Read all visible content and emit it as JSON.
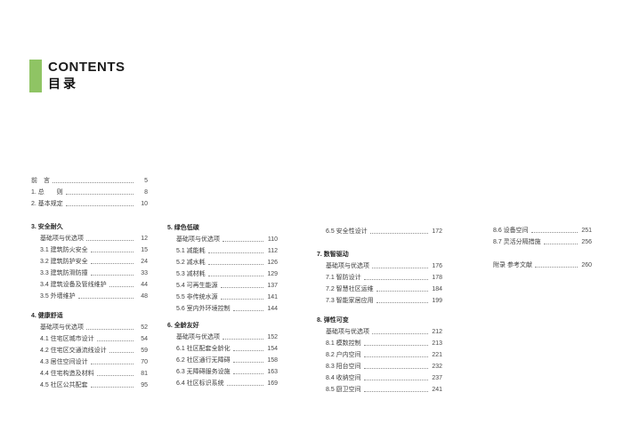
{
  "header": {
    "accent_color": "#8fc464",
    "title_en": "CONTENTS",
    "title_zh": "目录"
  },
  "toc": {
    "columns": [
      {
        "blocks": [
          {
            "items": [
              {
                "label": "前　言",
                "page": "5",
                "level": 0
              },
              {
                "label": "1. 总　　则",
                "page": "8",
                "level": 0
              },
              {
                "label": "2. 基本规定",
                "page": "10",
                "level": 0
              }
            ]
          },
          {
            "heading": "3. 安全耐久",
            "items": [
              {
                "label": "基础项与优选项",
                "page": "12",
                "level": 1
              },
              {
                "label": "3.1 建筑防火安全",
                "page": "15",
                "level": 1
              },
              {
                "label": "3.2 建筑防护安全",
                "page": "24",
                "level": 1
              },
              {
                "label": "3.3 建筑防滑防撞",
                "page": "33",
                "level": 1
              },
              {
                "label": "3.4 建筑设备及管线维护",
                "page": "44",
                "level": 1
              },
              {
                "label": "3.5 外墙维护",
                "page": "48",
                "level": 1
              }
            ]
          },
          {
            "heading": "4. 健康舒适",
            "items": [
              {
                "label": "基础项与优选项",
                "page": "52",
                "level": 1
              },
              {
                "label": "4.1 住宅区城市设计",
                "page": "54",
                "level": 1
              },
              {
                "label": "4.2 住宅区交通流线设计",
                "page": "59",
                "level": 1
              },
              {
                "label": "4.3 居住空间设计",
                "page": "70",
                "level": 1
              },
              {
                "label": "4.4 住宅构造及材料",
                "page": "81",
                "level": 1
              },
              {
                "label": "4.5 社区公共配套",
                "page": "95",
                "level": 1
              }
            ]
          }
        ]
      },
      {
        "blocks": [
          {
            "heading": "5. 绿色低碳",
            "items": [
              {
                "label": "基础项与优选项",
                "page": "110",
                "level": 1
              },
              {
                "label": "5.1 减能耗",
                "page": "112",
                "level": 1
              },
              {
                "label": "5.2 减水耗",
                "page": "126",
                "level": 1
              },
              {
                "label": "5.3 减材耗",
                "page": "129",
                "level": 1
              },
              {
                "label": "5.4 可再生能源",
                "page": "137",
                "level": 1
              },
              {
                "label": "5.5 非传统水源",
                "page": "141",
                "level": 1
              },
              {
                "label": "5.6 室内外环境控制",
                "page": "144",
                "level": 1
              }
            ]
          },
          {
            "heading": "6. 全龄友好",
            "items": [
              {
                "label": "基础项与优选项",
                "page": "152",
                "level": 1
              },
              {
                "label": "6.1 社区配套全龄化",
                "page": "154",
                "level": 1
              },
              {
                "label": "6.2 社区通行无障碍",
                "page": "158",
                "level": 1
              },
              {
                "label": "6.3 无障碍服务设施",
                "page": "163",
                "level": 1
              },
              {
                "label": "6.4 社区标识系统",
                "page": "169",
                "level": 1
              }
            ]
          }
        ]
      },
      {
        "blocks": [
          {
            "items": [
              {
                "label": "6.5 安全性设计",
                "page": "172",
                "level": 1
              }
            ]
          },
          {
            "heading": "7. 数智驱动",
            "items": [
              {
                "label": "基础项与优选项",
                "page": "176",
                "level": 1
              },
              {
                "label": "7.1 智防设计",
                "page": "178",
                "level": 1
              },
              {
                "label": "7.2 智慧社区运维",
                "page": "184",
                "level": 1
              },
              {
                "label": "7.3 智能家居应用",
                "page": "199",
                "level": 1
              }
            ]
          },
          {
            "heading": "8. 弹性可变",
            "items": [
              {
                "label": "基础项与优选项",
                "page": "212",
                "level": 1
              },
              {
                "label": "8.1 模数控制",
                "page": "213",
                "level": 1
              },
              {
                "label": "8.2 户内空间",
                "page": "221",
                "level": 1
              },
              {
                "label": "8.3 阳台空间",
                "page": "232",
                "level": 1
              },
              {
                "label": "8.4 收纳空间",
                "page": "237",
                "level": 1
              },
              {
                "label": "8.5 厨卫空间",
                "page": "241",
                "level": 1
              }
            ]
          }
        ]
      },
      {
        "blocks": [
          {
            "items": [
              {
                "label": "8.6 设备空间",
                "page": "251",
                "level": 0
              },
              {
                "label": "8.7 灵活分隔措施",
                "page": "256",
                "level": 0
              }
            ]
          },
          {
            "items": [
              {
                "label": "附录 参考文献",
                "page": "260",
                "level": 0
              }
            ]
          }
        ]
      }
    ]
  }
}
